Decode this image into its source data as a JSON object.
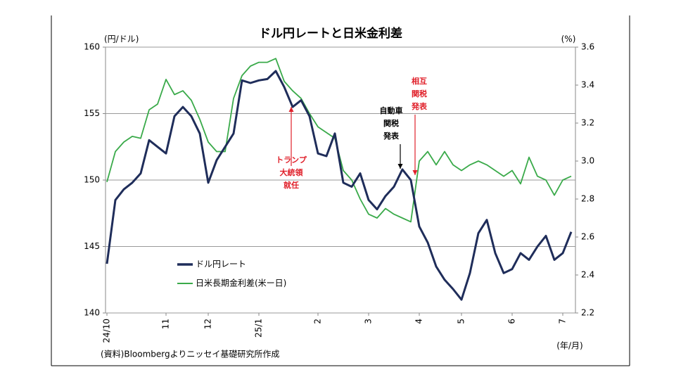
{
  "chart_data": {
    "type": "line",
    "title": "ドル円レートと日米金利差",
    "y_label": "(円/ドル)",
    "y2_label": "(%)",
    "x_label": "(年/月)",
    "source": "(資料)Bloombergよりニッセイ基礎研究所作成",
    "categories": [
      "24/10",
      null,
      null,
      null,
      null,
      null,
      null,
      "11",
      null,
      null,
      null,
      null,
      "12",
      null,
      null,
      null,
      null,
      null,
      "25/1",
      null,
      null,
      null,
      null,
      null,
      null,
      "2",
      null,
      null,
      null,
      null,
      null,
      "3",
      null,
      null,
      null,
      null,
      null,
      "4",
      null,
      null,
      null,
      null,
      "5",
      null,
      null,
      null,
      null,
      null,
      "6",
      null,
      null,
      null,
      null,
      null,
      "7",
      null
    ],
    "series": [
      {
        "name": "ドル円レート",
        "color": "#1f2d5a",
        "axis": "y",
        "values": [
          143.7,
          148.5,
          149.3,
          149.8,
          150.5,
          153.0,
          152.5,
          152.0,
          154.8,
          155.5,
          154.8,
          153.5,
          149.8,
          151.5,
          152.5,
          153.5,
          157.5,
          157.3,
          157.5,
          157.6,
          158.2,
          157.0,
          155.5,
          156.0,
          154.8,
          152.0,
          151.8,
          153.5,
          149.8,
          149.5,
          150.5,
          148.5,
          147.8,
          148.8,
          149.5,
          150.8,
          150.0,
          146.5,
          145.3,
          143.5,
          142.5,
          141.8,
          141.0,
          143.0,
          146.0,
          147.0,
          144.5,
          143.0,
          143.3,
          144.5,
          144.0,
          145.0,
          145.8,
          144.0,
          144.5,
          146.1
        ]
      },
      {
        "name": "日米長期金利差(米ー日)",
        "color": "#3aaa4a",
        "axis": "y2",
        "values": [
          2.89,
          3.05,
          3.1,
          3.13,
          3.12,
          3.27,
          3.3,
          3.43,
          3.35,
          3.37,
          3.32,
          3.22,
          3.1,
          3.05,
          3.05,
          3.33,
          3.45,
          3.5,
          3.52,
          3.52,
          3.54,
          3.42,
          3.37,
          3.33,
          3.25,
          3.18,
          3.15,
          3.12,
          2.95,
          2.9,
          2.8,
          2.72,
          2.7,
          2.75,
          2.72,
          2.7,
          2.68,
          3.0,
          3.05,
          2.98,
          3.05,
          2.98,
          2.95,
          2.98,
          3.0,
          2.98,
          2.95,
          2.92,
          2.95,
          2.88,
          3.02,
          2.92,
          2.9,
          2.82,
          2.9,
          2.92
        ]
      }
    ],
    "ylim": [
      140,
      160
    ],
    "yticks": [
      140,
      145,
      150,
      155,
      160
    ],
    "y2lim": [
      2.2,
      3.6
    ],
    "y2ticks": [
      2.2,
      2.4,
      2.6,
      2.8,
      {
        "value": 3,
        "label": "3.0"
      },
      3.2,
      3.4,
      3.6
    ],
    "grid": true,
    "legend": "lower left",
    "annotations": [
      {
        "lines": [
          "トランプ",
          "大統領",
          "就任"
        ],
        "color": "#e0202a"
      },
      {
        "lines": [
          "自動車",
          "関税",
          "発表"
        ],
        "color": "#000000"
      },
      {
        "lines": [
          "相互",
          "関税",
          "発表"
        ],
        "color": "#e0202a"
      }
    ]
  }
}
